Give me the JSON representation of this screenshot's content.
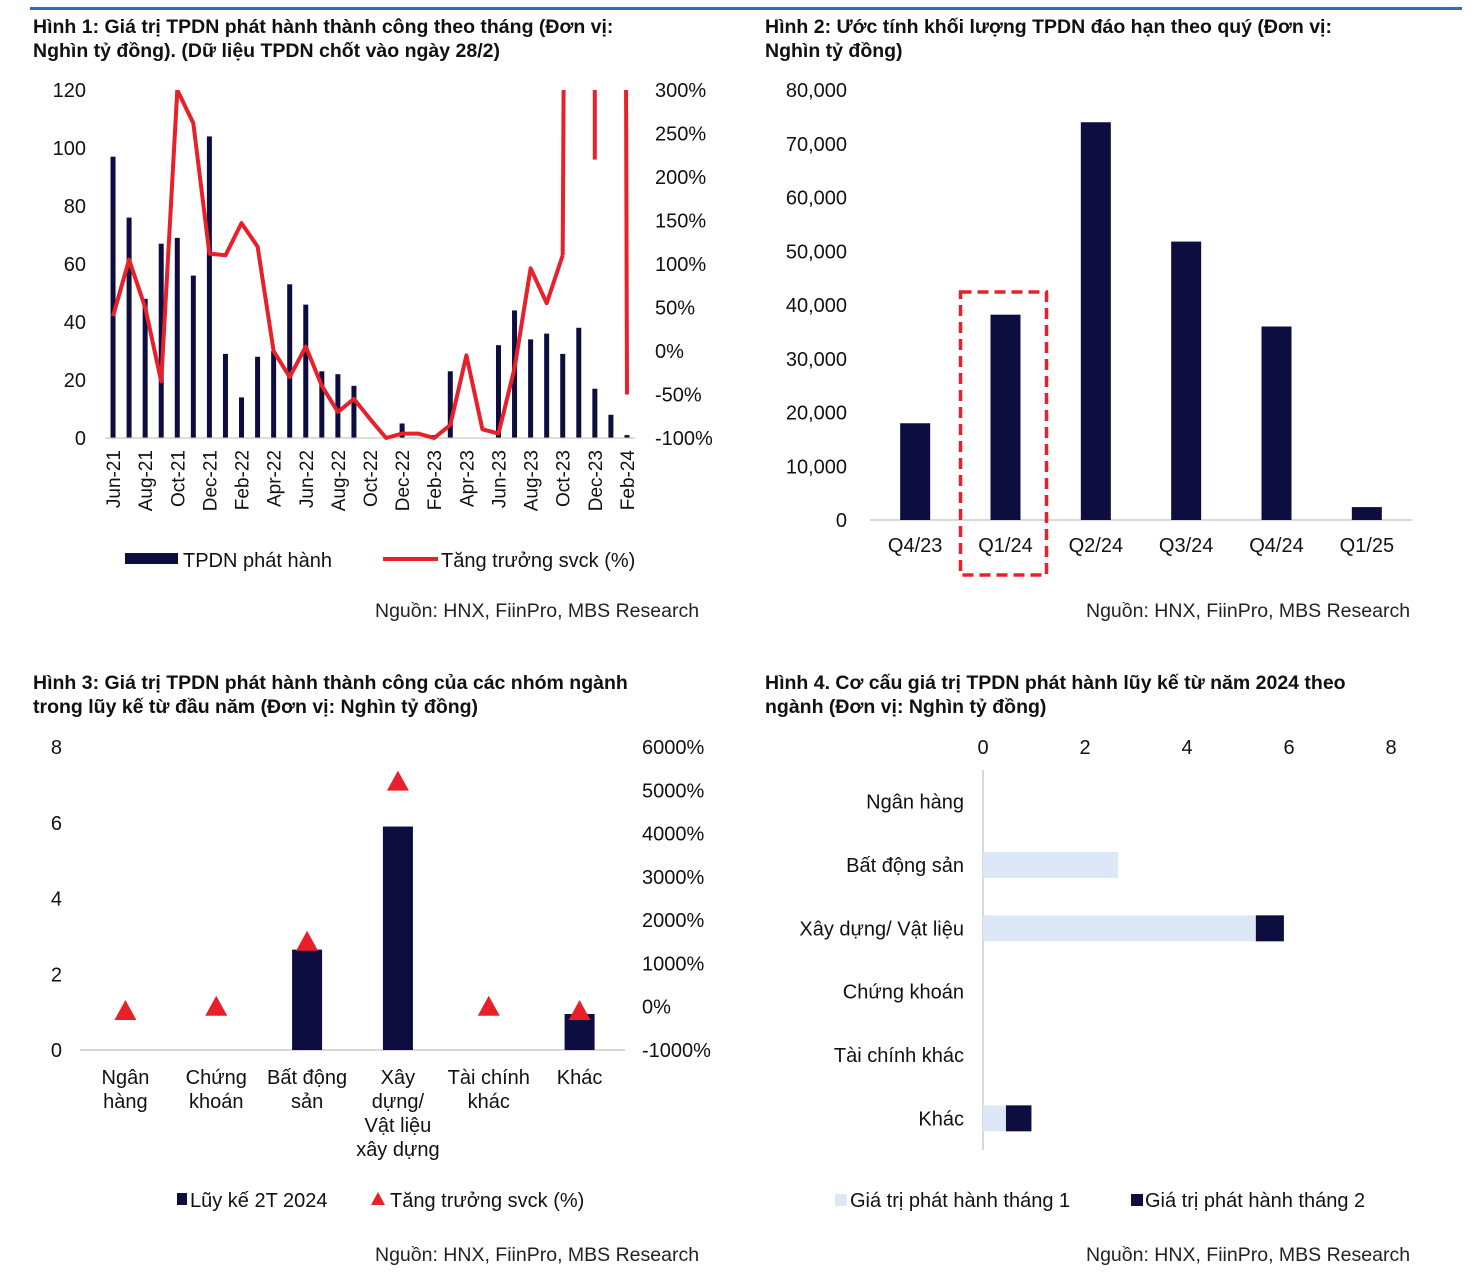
{
  "colors": {
    "bar": "#0d0d3f",
    "line": "#e8202a",
    "bar_light": "#dce8f8",
    "highlight": "#e8202a",
    "accent_rule": "#2e6db4"
  },
  "charts": {
    "c1": {
      "title_line1": "Hình 1: Giá trị TPDN phát hành thành công theo tháng (Đơn vị:",
      "title_line2": "Nghìn tỷ đồng). (Dữ liệu TPDN chốt vào ngày 28/2)",
      "source": "Nguồn: HNX, FiinPro, MBS Research",
      "legend_bar": "TPDN phát hành",
      "legend_line": "Tăng trưởng svck (%)"
    },
    "c2": {
      "title_line1": "Hình 2: Ước tính khối lượng TPDN đáo hạn theo quý (Đơn vị:",
      "title_line2": "Nghìn tỷ đồng)",
      "source": "Nguồn: HNX, FiinPro, MBS Research"
    },
    "c3": {
      "title_line1": "Hình 3: Giá trị TPDN phát hành thành công của các nhóm ngành",
      "title_line2": "trong lũy kế từ đầu năm (Đơn vị: Nghìn tỷ đồng)",
      "source": "Nguồn: HNX, FiinPro, MBS Research",
      "legend_bar": "Lũy kế 2T 2024",
      "legend_marker": "Tăng trưởng svck (%)"
    },
    "c4": {
      "title_line1": "Hình 4. Cơ cấu giá trị TPDN phát hành lũy kế từ năm 2024 theo",
      "title_line2": "ngành (Đơn vị: Nghìn tỷ đồng)",
      "source": "Nguồn: HNX, FiinPro, MBS Research",
      "legend_s1": "Giá trị phát hành tháng 1",
      "legend_s2": "Giá trị phát hành tháng 2"
    }
  },
  "chart_data": [
    {
      "type": "bar",
      "combo": "bar+line",
      "x_tick_labels": [
        "Jun-21",
        "Aug-21",
        "Oct-21",
        "Dec-21",
        "Feb-22",
        "Apr-22",
        "Jun-22",
        "Aug-22",
        "Oct-22",
        "Dec-22",
        "Feb-23",
        "Apr-23",
        "Jun-23",
        "Aug-23",
        "Oct-23",
        "Dec-23",
        "Feb-24"
      ],
      "categories": [
        "Jun-21",
        "Jul-21",
        "Aug-21",
        "Sep-21",
        "Oct-21",
        "Nov-21",
        "Dec-21",
        "Jan-22",
        "Feb-22",
        "Mar-22",
        "Apr-22",
        "May-22",
        "Jun-22",
        "Jul-22",
        "Aug-22",
        "Sep-22",
        "Oct-22",
        "Nov-22",
        "Dec-22",
        "Jan-23",
        "Feb-23",
        "Mar-23",
        "Apr-23",
        "May-23",
        "Jun-23",
        "Jul-23",
        "Aug-23",
        "Sep-23",
        "Oct-23",
        "Nov-23",
        "Dec-23",
        "Jan-24",
        "Feb-24"
      ],
      "series": [
        {
          "name": "TPDN phát hành",
          "axis": "left",
          "kind": "bar",
          "values": [
            97,
            76,
            48,
            67,
            69,
            56,
            104,
            29,
            14,
            28,
            30,
            53,
            46,
            23,
            22,
            18,
            0,
            0,
            5,
            0,
            1,
            23,
            0,
            0,
            32,
            44,
            34,
            36,
            29,
            38,
            17,
            8,
            1
          ]
        },
        {
          "name": "Tăng trưởng svck (%)",
          "axis": "right",
          "kind": "line",
          "values": [
            40,
            105,
            50,
            -35,
            300,
            262,
            112,
            110,
            147,
            120,
            0,
            -30,
            5,
            -40,
            -70,
            -55,
            -78,
            -100,
            -95,
            -95,
            -100,
            -85,
            -5,
            -90,
            -95,
            -20,
            95,
            55,
            110,
            null,
            null,
            null,
            -50
          ]
        }
      ],
      "extra_line_segments_note": "line exceeds right axis max near Aug-23..Feb-24",
      "yleft_ticks": [
        "0",
        "20",
        "40",
        "60",
        "80",
        "100",
        "120"
      ],
      "yright_ticks": [
        "-100%",
        "-50%",
        "0%",
        "50%",
        "100%",
        "150%",
        "200%",
        "250%",
        "300%"
      ],
      "ylim_left": [
        0,
        120
      ],
      "ylim_right": [
        -100,
        300
      ]
    },
    {
      "type": "bar",
      "categories": [
        "Q4/23",
        "Q1/24",
        "Q2/24",
        "Q3/24",
        "Q4/24",
        "Q1/25"
      ],
      "values": [
        18000,
        38200,
        74000,
        51800,
        36000,
        2400
      ],
      "highlight": "Q1/24",
      "y_ticks": [
        "0",
        "10,000",
        "20,000",
        "30,000",
        "40,000",
        "50,000",
        "60,000",
        "70,000",
        "80,000"
      ],
      "ylim": [
        0,
        80000
      ]
    },
    {
      "type": "bar",
      "combo": "bar+marker",
      "categories": [
        "Ngân hàng",
        "Chứng khoán",
        "Bất động sản",
        "Xây dựng/ Vật liệu xây dựng",
        "Tài chính khác",
        "Khác"
      ],
      "category_label_lines": [
        [
          "Ngân",
          "hàng"
        ],
        [
          "Chứng",
          "khoán"
        ],
        [
          "Bất động",
          "sản"
        ],
        [
          "Xây",
          "dựng/",
          "Vật liệu",
          "xây dựng"
        ],
        [
          "Tài chính",
          "khác"
        ],
        [
          "Khác"
        ]
      ],
      "series": [
        {
          "name": "Lũy kế 2T 2024",
          "axis": "left",
          "kind": "bar",
          "values": [
            0,
            0,
            2.65,
            5.9,
            0,
            0.95
          ]
        },
        {
          "name": "Tăng trưởng svck (%)",
          "axis": "right",
          "kind": "marker",
          "values": [
            -100,
            0,
            1500,
            5200,
            0,
            -100
          ]
        }
      ],
      "yleft_ticks": [
        "0",
        "2",
        "4",
        "6",
        "8"
      ],
      "yright_ticks": [
        "-1000%",
        "0%",
        "1000%",
        "2000%",
        "3000%",
        "4000%",
        "5000%",
        "6000%"
      ],
      "ylim_left": [
        0,
        8
      ],
      "ylim_right": [
        -1000,
        6000
      ]
    },
    {
      "type": "bar",
      "orientation": "horizontal",
      "stacked": true,
      "categories": [
        "Ngân hàng",
        "Bất động sản",
        "Xây dựng/ Vật liệu",
        "Chứng khoán",
        "Tài chính khác",
        "Khác"
      ],
      "series": [
        {
          "name": "Giá trị phát hành tháng 1",
          "values": [
            0,
            2.65,
            5.35,
            0,
            0,
            0.45
          ]
        },
        {
          "name": "Giá trị phát hành tháng 2",
          "values": [
            0,
            0,
            0.55,
            0,
            0,
            0.5
          ]
        }
      ],
      "x_ticks": [
        "0",
        "2",
        "4",
        "6",
        "8"
      ],
      "xlim": [
        0,
        8
      ]
    }
  ]
}
